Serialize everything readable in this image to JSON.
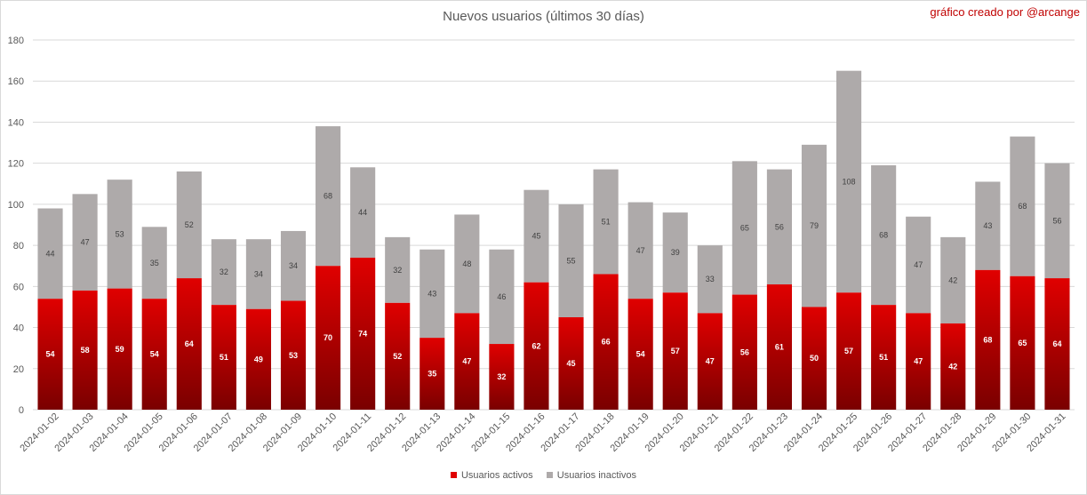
{
  "header": {
    "title": "Nuevos usuarios (últimos 30 días)",
    "credit": "gráfico creado por @arcange"
  },
  "colors": {
    "active_top": "#e00000",
    "active_bottom": "#7a0000",
    "inactive": "#aeaaaa",
    "grid": "#d9d9d9",
    "axis_text": "#595959"
  },
  "chart_data": {
    "type": "bar",
    "stacked": true,
    "title": "Nuevos usuarios (últimos 30 días)",
    "xlabel": "",
    "ylabel": "",
    "ylim": [
      0,
      180
    ],
    "yticks": [
      0,
      20,
      40,
      60,
      80,
      100,
      120,
      140,
      160,
      180
    ],
    "grid": true,
    "legend_position": "bottom",
    "categories": [
      "2024-01-02",
      "2024-01-03",
      "2024-01-04",
      "2024-01-05",
      "2024-01-06",
      "2024-01-07",
      "2024-01-08",
      "2024-01-09",
      "2024-01-10",
      "2024-01-11",
      "2024-01-12",
      "2024-01-13",
      "2024-01-14",
      "2024-01-15",
      "2024-01-16",
      "2024-01-17",
      "2024-01-18",
      "2024-01-19",
      "2024-01-20",
      "2024-01-21",
      "2024-01-22",
      "2024-01-23",
      "2024-01-24",
      "2024-01-25",
      "2024-01-26",
      "2024-01-27",
      "2024-01-28",
      "2024-01-29",
      "2024-01-30",
      "2024-01-31"
    ],
    "series": [
      {
        "name": "Usuarios activos",
        "values": [
          54,
          58,
          59,
          54,
          64,
          51,
          49,
          53,
          70,
          74,
          52,
          35,
          47,
          32,
          62,
          45,
          66,
          54,
          57,
          47,
          56,
          61,
          50,
          57,
          51,
          47,
          42,
          68,
          65,
          64
        ]
      },
      {
        "name": "Usuarios inactivos",
        "values": [
          44,
          47,
          53,
          35,
          52,
          32,
          34,
          34,
          68,
          44,
          32,
          43,
          48,
          46,
          45,
          55,
          51,
          47,
          39,
          33,
          65,
          56,
          79,
          108,
          68,
          47,
          42,
          43,
          68,
          56
        ]
      }
    ]
  }
}
